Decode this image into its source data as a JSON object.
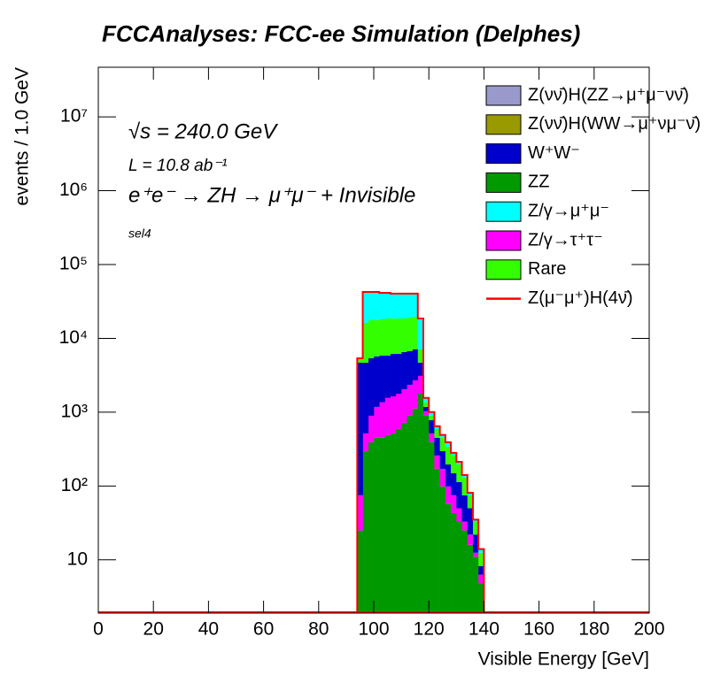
{
  "chart_data": {
    "type": "stacked_histogram",
    "title": "FCCAnalyses: FCC-ee Simulation (Delphes)",
    "xlabel": "Visible Energy [GeV]",
    "ylabel": "events / 1.0 GeV",
    "annotations": [
      "√s = 240.0 GeV",
      "L = 10.8 ab⁻¹",
      "e⁺e⁻ → ZH → μ⁺μ⁻ + Invisible",
      "sel4"
    ],
    "log_y": true,
    "legend": "upper right",
    "xlim": [
      0,
      200
    ],
    "xticks": [
      0,
      20,
      40,
      60,
      80,
      100,
      120,
      140,
      160,
      180,
      200
    ],
    "ylim": [
      1.9,
      47000000
    ],
    "yticks": [
      10,
      {
        "value": 100,
        "label": "10²"
      },
      {
        "value": 1000,
        "label": "10³"
      },
      {
        "value": 10000,
        "label": "10⁴"
      },
      {
        "value": 100000,
        "label": "10⁵"
      },
      {
        "value": 1000000,
        "label": "10⁶"
      },
      {
        "value": 10000000,
        "label": "10⁷"
      }
    ],
    "bins": [
      94,
      96,
      98,
      100,
      102,
      104,
      106,
      108,
      110,
      112,
      114,
      116,
      118,
      120,
      122,
      124,
      126,
      128,
      130,
      132,
      134,
      136,
      138,
      140
    ],
    "series": [
      {
        "name": "Z(νν̄)H(ZZ→μ⁺μ⁻νν̄)",
        "color": "#9999cc",
        "values": [
          0,
          1,
          1,
          1,
          1,
          1,
          1,
          1,
          1,
          1,
          1,
          1,
          1,
          1,
          1,
          1,
          0,
          0,
          0,
          0,
          0,
          0,
          0
        ]
      },
      {
        "name": "Z(νν̄)H(WW→μ⁺νμ⁻ν̄)",
        "color": "#999900",
        "values": [
          0,
          1,
          1,
          1,
          1,
          1,
          1,
          1,
          1,
          1,
          1,
          1,
          1,
          1,
          1,
          1,
          0,
          0,
          0,
          0,
          0,
          0,
          0
        ]
      },
      {
        "name": "W⁺W⁻",
        "color": "#0000cc",
        "values": [
          4600,
          4170,
          4485,
          4500,
          4480,
          4280,
          4530,
          4390,
          4470,
          4350,
          4380,
          1590,
          150,
          264,
          191,
          126,
          97,
          74,
          63,
          42,
          28,
          9.5,
          1.9
        ]
      },
      {
        "name": "ZZ",
        "color": "#009900",
        "values": [
          25,
          297,
          392,
          450,
          450,
          489,
          516,
          592,
          718,
          895,
          1120,
          1780,
          895,
          392,
          171,
          99,
          57,
          43,
          33,
          25,
          16,
          11,
          4.8
        ]
      },
      {
        "name": "Z/γ→μ⁺μ⁻",
        "color": "#00ffff",
        "values": [
          0,
          26300,
          24900,
          24900,
          23300,
          22800,
          21700,
          21700,
          21700,
          21200,
          20700,
          11520,
          200,
          105,
          51,
          39,
          51,
          22,
          17,
          11,
          6,
          2,
          1.5
        ]
      },
      {
        "name": "Z/γ→τ⁺τ⁻",
        "color": "#ff00ff",
        "values": [
          50,
          219,
          503,
          730,
          910,
          1071,
          1124,
          1188,
          1332,
          1455,
          1580,
          1320,
          135,
          124,
          88,
          72,
          42,
          32,
          17,
          8,
          6,
          1.5,
          1.5
        ]
      },
      {
        "name": "Rare",
        "color": "#33ff00",
        "values": [
          690,
          11510,
          12220,
          11920,
          12260,
          12760,
          12430,
          12430,
          12080,
          12400,
          12520,
          2390,
          180,
          115,
          142,
          153,
          145,
          110,
          83,
          55,
          25,
          11,
          4.3
        ]
      },
      {
        "name": "Z(μ⁻μ⁺)H(4ν̄)",
        "color": "#ff0000",
        "values": [
          1,
          2,
          2,
          2,
          2,
          2,
          2,
          2,
          2,
          2,
          2,
          2,
          1,
          1,
          1,
          1,
          0,
          0,
          0,
          0,
          0,
          0,
          0
        ]
      }
    ]
  }
}
